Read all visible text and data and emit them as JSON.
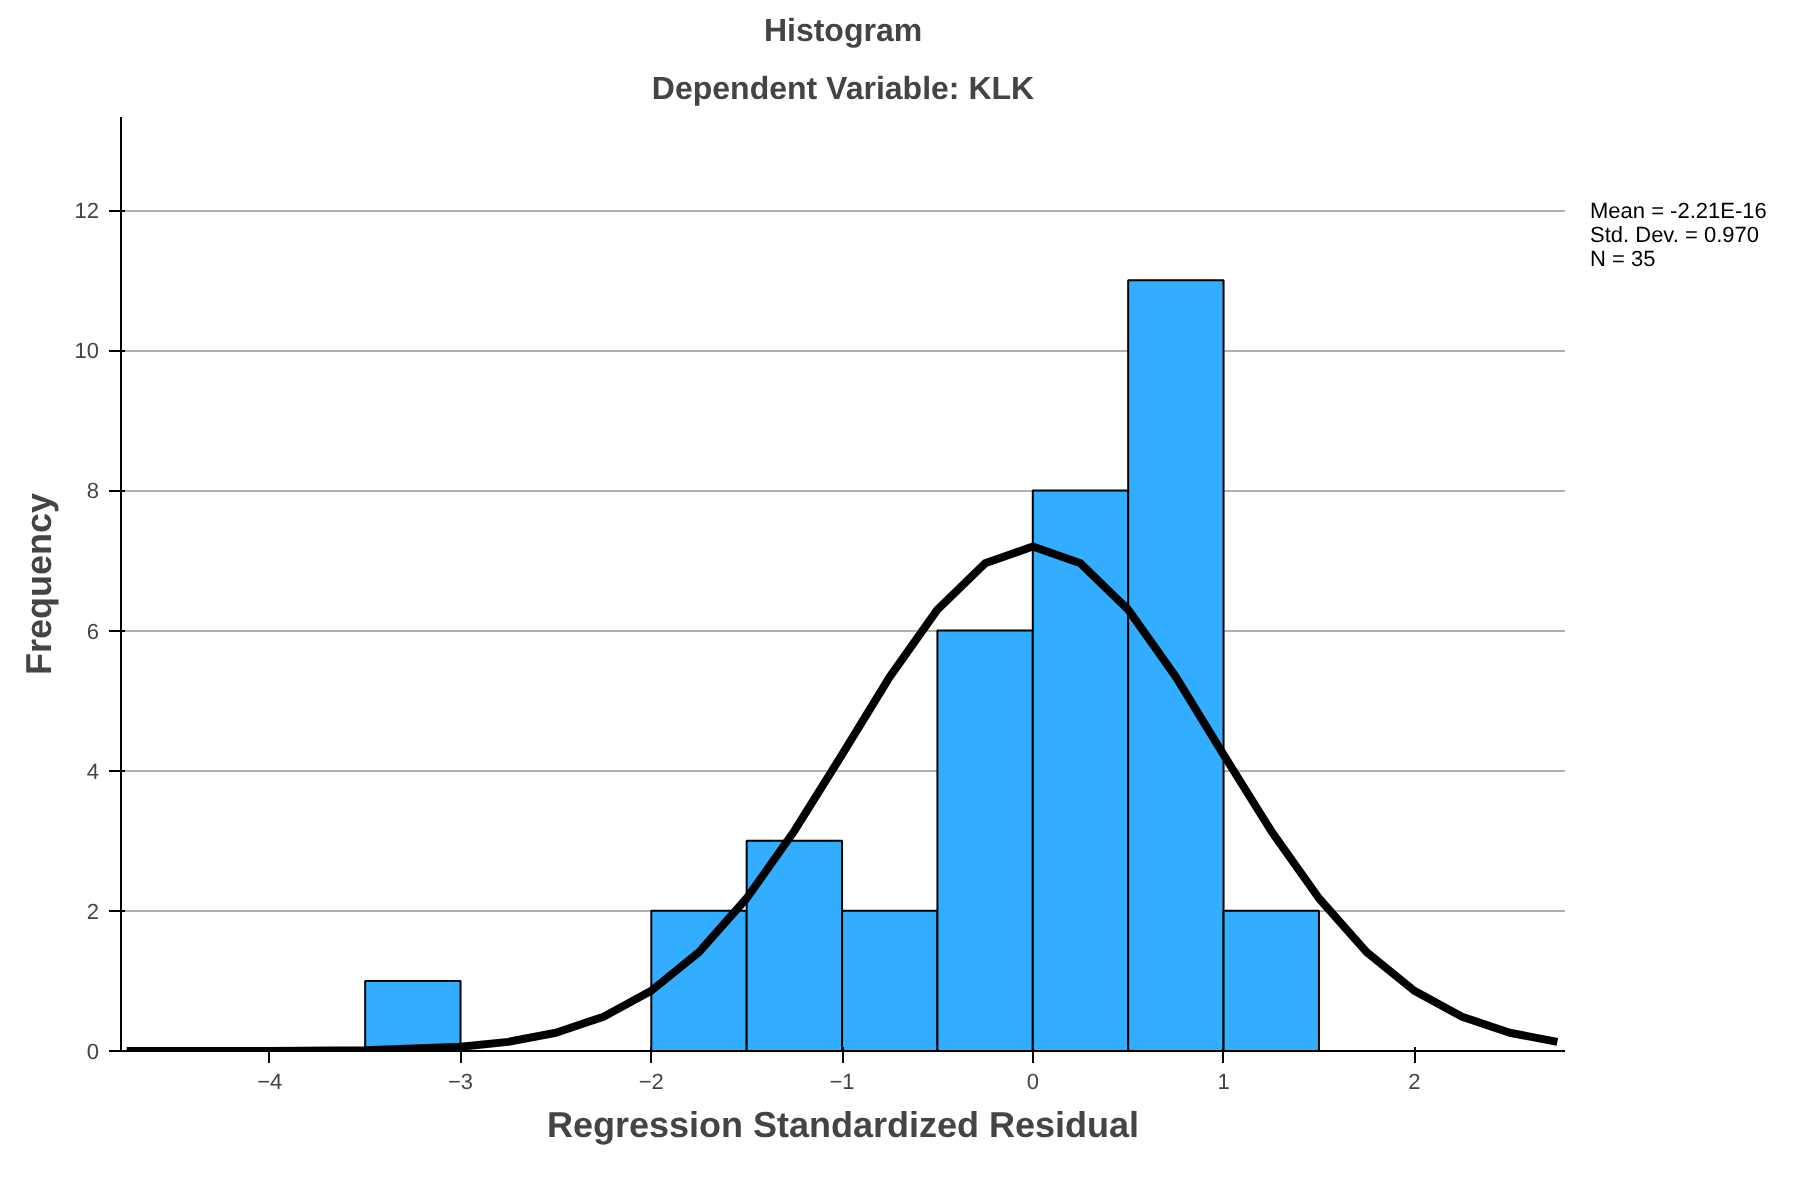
{
  "chart_data": {
    "type": "histogram",
    "title": "Histogram",
    "subtitle": "Dependent Variable: KLK",
    "xlabel": "Regression Standardized Residual",
    "ylabel": "Frequency",
    "bins": [
      -3.5,
      -3.0,
      -2.5,
      -2.0,
      -1.5,
      -1.0,
      -0.5,
      0.0,
      0.5,
      1.0,
      1.5
    ],
    "values": [
      1,
      0,
      0,
      2,
      3,
      2,
      6,
      8,
      11,
      2
    ],
    "color": "#33adff",
    "series": [
      {
        "type": "line",
        "color": "#000000",
        "x": [
          -4.75,
          -4.5,
          -4.0,
          -3.5,
          -3.0,
          -2.75,
          -2.5,
          -2.25,
          -2.0,
          -1.75,
          -1.5,
          -1.25,
          -1.0,
          -0.75,
          -0.5,
          -0.25,
          0.0,
          0.25,
          0.5,
          0.75,
          1.0,
          1.25,
          1.5,
          1.75,
          2.0,
          2.25,
          2.5,
          2.75
        ],
        "values": [
          0.0,
          0.0,
          0.0,
          0.01,
          0.06,
          0.13,
          0.26,
          0.49,
          0.86,
          1.41,
          2.18,
          3.14,
          4.23,
          5.34,
          6.3,
          6.96,
          7.2,
          6.96,
          6.3,
          5.34,
          4.23,
          3.14,
          2.18,
          1.41,
          0.86,
          0.49,
          0.26,
          0.13
        ]
      }
    ],
    "xlim": [
      -4.78,
      2.79
    ],
    "ylim": [
      0,
      13.33
    ],
    "xticks": [
      -4,
      -3,
      -2,
      -1,
      0,
      1,
      2
    ],
    "yticks": [
      0,
      2,
      4,
      6,
      8,
      10,
      12
    ],
    "grid": "y",
    "annotations": [
      "Mean = -2.21E-16",
      "Std. Dev. = 0.970",
      "N = 35"
    ]
  }
}
